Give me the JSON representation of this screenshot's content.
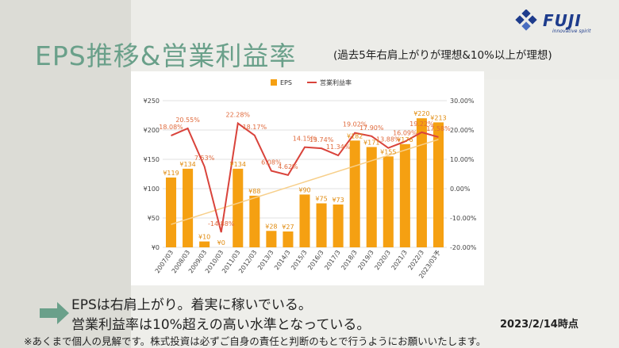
{
  "slide": {
    "title": "EPS推移&営業利益率",
    "subtitle": "(過去5年右肩上がりが理想&10%以上が理想)",
    "logo_text": "FUJI",
    "logo_tagline": "innovative spirit",
    "note_line1": "EPSは右肩上がり。着実に稼いでいる。",
    "note_line2": "営業利益率は10%超えの高い水準となっている。",
    "as_of": "2023/2/14時点",
    "disclaimer": "※あくまで個人の見解です。株式投資は必ずご自身の責任と判断のもとで行うようにお願いいたします。"
  },
  "chart_data": {
    "type": "bar",
    "categories": [
      "2007/03",
      "2008/03",
      "2009/03",
      "2010/03",
      "2011/03",
      "2012/03",
      "2013/3",
      "2014/3",
      "2015/3",
      "2016/3",
      "2017/3",
      "2018/3",
      "2019/3",
      "2020/3",
      "2021/3",
      "2022/3",
      "2023/03予"
    ],
    "series": [
      {
        "name": "EPS",
        "kind": "bar",
        "axis": "left",
        "color": "#f5a012",
        "values": [
          119,
          134,
          10,
          0,
          134,
          88,
          28,
          27,
          90,
          75,
          73,
          182,
          171,
          155,
          176,
          220,
          213
        ],
        "labels": [
          "¥119",
          "¥134",
          "¥10",
          "¥0",
          "¥134",
          "¥88",
          "¥28",
          "¥27",
          "¥90",
          "¥75",
          "¥73",
          "¥182",
          "¥171",
          "¥155",
          "¥176",
          "¥220",
          "¥213"
        ]
      },
      {
        "name": "営業利益率",
        "kind": "line",
        "axis": "right",
        "color": "#d9433b",
        "values": [
          18.08,
          20.55,
          7.53,
          -14.88,
          22.28,
          18.17,
          6.08,
          4.62,
          14.15,
          13.74,
          11.34,
          19.02,
          17.9,
          13.88,
          16.09,
          19.22,
          17.58
        ],
        "labels": [
          "18.08%",
          "20.55%",
          "7.53%",
          "-14.88%",
          "22.28%",
          "18.17%",
          "6.08%",
          "4.62%",
          "14.15%",
          "13.74%",
          "11.34%",
          "19.02%",
          "17.90%",
          "13.88%",
          "16.09%",
          "19.22%",
          "17.58%"
        ]
      }
    ],
    "y_left": {
      "min": 0,
      "max": 250,
      "ticks": [
        "¥0",
        "¥50",
        "¥100",
        "¥150",
        "¥200",
        "¥250"
      ]
    },
    "y_right": {
      "min": -20,
      "max": 30,
      "ticks": [
        "-20.00%",
        "-10.00%",
        "0.00%",
        "10.00%",
        "20.00%",
        "30.00%"
      ]
    },
    "trendline": {
      "series": "EPS",
      "color": "#f7cf8a"
    },
    "legend": {
      "position": "top"
    },
    "grid": true
  }
}
